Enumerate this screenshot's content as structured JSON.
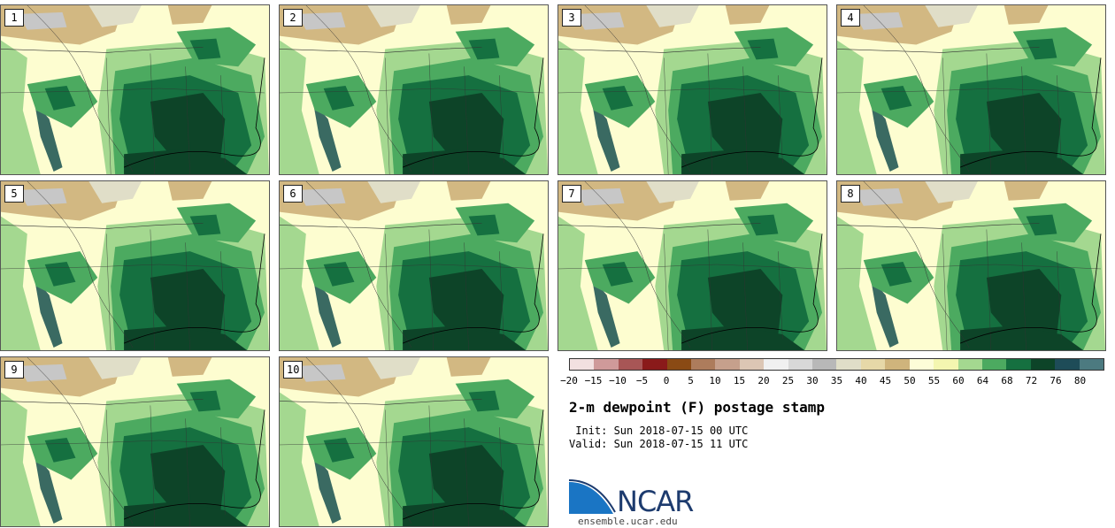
{
  "panels": [
    {
      "label": "1"
    },
    {
      "label": "2"
    },
    {
      "label": "3"
    },
    {
      "label": "4"
    },
    {
      "label": "5"
    },
    {
      "label": "6"
    },
    {
      "label": "7"
    },
    {
      "label": "8"
    },
    {
      "label": "9"
    },
    {
      "label": "10"
    }
  ],
  "colorbar": {
    "colors": [
      "#f2e0e0",
      "#cf9a9a",
      "#a85656",
      "#8a1a1a",
      "#8a4a14",
      "#ad7c5c",
      "#c6a08c",
      "#dcc6b4",
      "#f0f0f0",
      "#d8d8d8",
      "#b8b8b8",
      "#e0dec8",
      "#e6d8a8",
      "#cfb47c",
      "#fdfdd8",
      "#f4f6b0",
      "#a4d890",
      "#4caa60",
      "#157040",
      "#0d4428",
      "#1e4c58",
      "#4c7a80"
    ],
    "ticks": [
      "−20",
      "−15",
      "−10",
      "−5",
      "0",
      "5",
      "10",
      "15",
      "20",
      "25",
      "30",
      "35",
      "40",
      "45",
      "50",
      "55",
      "60",
      "64",
      "68",
      "72",
      "76",
      "80"
    ]
  },
  "title": "2-m dewpoint (F) postage stamp",
  "init_text": " Init: Sun 2018-07-15 00 UTC",
  "valid_text": "Valid: Sun 2018-07-15 11 UTC",
  "logo_text": "NCAR",
  "site_text": "ensemble.ucar.edu"
}
